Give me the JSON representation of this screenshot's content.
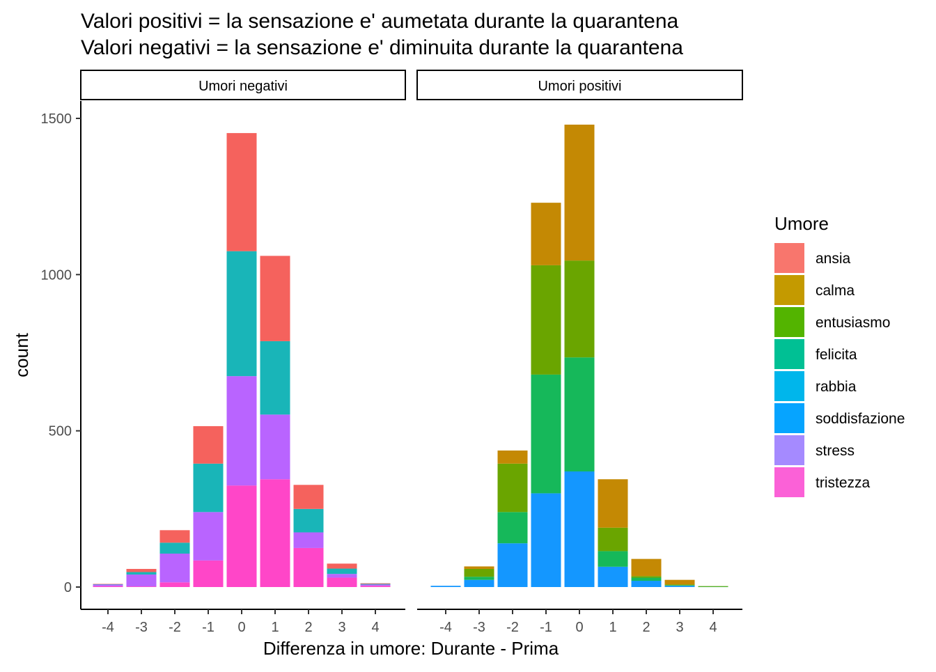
{
  "chart_data": {
    "type": "bar",
    "stacked": true,
    "title_line1": "Valori positivi = la sensazione e' aumetata durante la quarantena",
    "title_line2": "Valori negativi = la sensazione e' diminuita durante la quarantena",
    "xlabel": "Differenza in umore: Durante - Prima",
    "ylabel": "count",
    "ylim": [
      -70,
      1560
    ],
    "yticks": [
      0,
      500,
      1000,
      1500
    ],
    "x": [
      -4,
      -3,
      -2,
      -1,
      0,
      1,
      2,
      3,
      4
    ],
    "grid": false,
    "legend": {
      "title": "Umore",
      "position": "right",
      "items": [
        {
          "name": "ansia",
          "color": "#F8766D"
        },
        {
          "name": "calma",
          "color": "#C49A00"
        },
        {
          "name": "entusiasmo",
          "color": "#53B400"
        },
        {
          "name": "felicita",
          "color": "#00C094"
        },
        {
          "name": "rabbia",
          "color": "#00B6EB"
        },
        {
          "name": "soddisfazione",
          "color": "#06A4FF"
        },
        {
          "name": "stress",
          "color": "#A58AFF"
        },
        {
          "name": "tristezza",
          "color": "#FB61D7"
        }
      ]
    },
    "panels": [
      {
        "label": "Umori negativi",
        "series": [
          {
            "name": "tristezza",
            "color": "#FF46C8",
            "values": [
              3,
              2,
              15,
              85,
              325,
              345,
              125,
              30,
              4
            ]
          },
          {
            "name": "stress",
            "color": "#B964FF",
            "values": [
              5,
              38,
              92,
              155,
              350,
              207,
              50,
              12,
              4
            ]
          },
          {
            "name": "rabbia",
            "color": "#19B5B8",
            "values": [
              1,
              8,
              35,
              155,
              400,
              235,
              75,
              17,
              2
            ]
          },
          {
            "name": "ansia",
            "color": "#F5625D",
            "values": [
              1,
              10,
              40,
              120,
              378,
              273,
              77,
              16,
              2
            ]
          }
        ]
      },
      {
        "label": "Umori positivi",
        "series": [
          {
            "name": "soddisfazione",
            "color": "#1497FF",
            "values": [
              4,
              23,
              140,
              300,
              370,
              65,
              20,
              4,
              0
            ]
          },
          {
            "name": "felicita",
            "color": "#16B85A",
            "values": [
              0,
              10,
              100,
              380,
              365,
              50,
              10,
              2,
              1
            ]
          },
          {
            "name": "entusiasmo",
            "color": "#6AA500",
            "values": [
              0,
              25,
              155,
              350,
              310,
              75,
              5,
              2,
              2
            ]
          },
          {
            "name": "calma",
            "color": "#C48904",
            "values": [
              0,
              8,
              42,
              200,
              435,
              155,
              55,
              15,
              0
            ]
          }
        ]
      }
    ]
  }
}
